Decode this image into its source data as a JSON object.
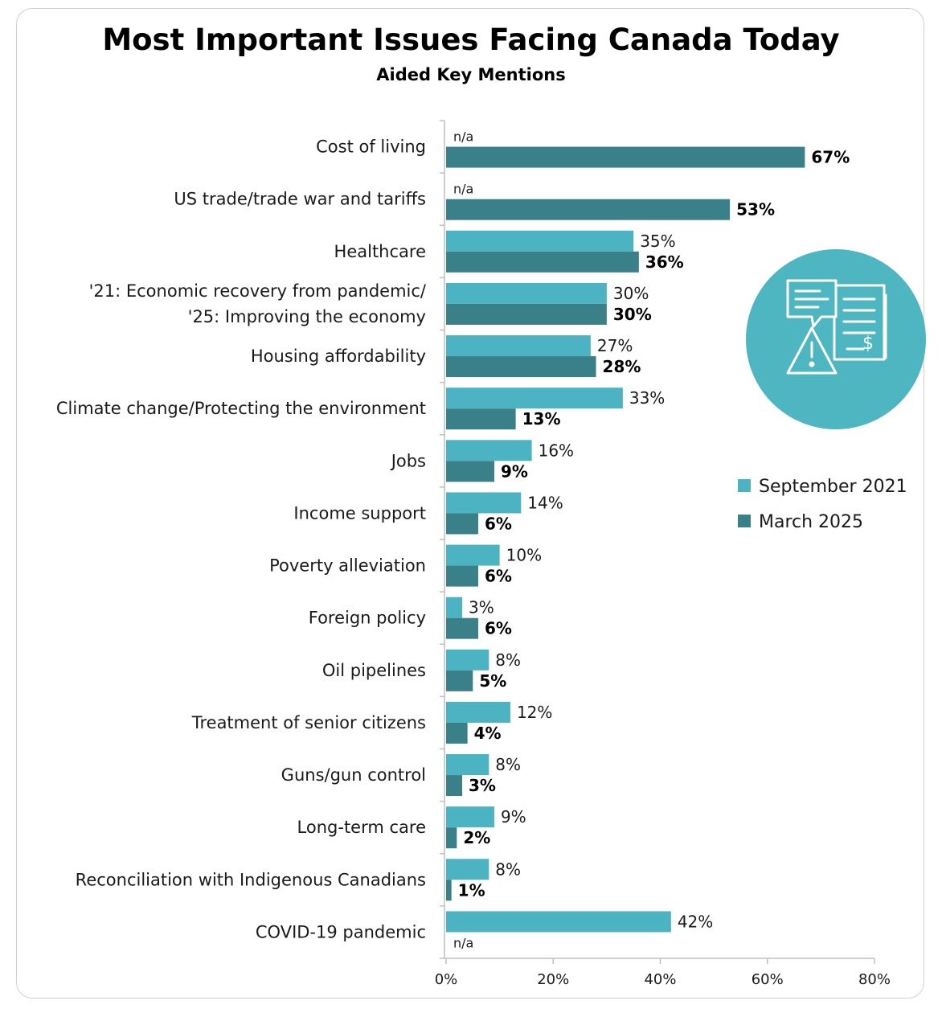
{
  "chart_data": {
    "type": "bar",
    "orientation": "horizontal",
    "title": "Most Important Issues Facing Canada Today",
    "subtitle": "Aided Key Mentions",
    "xlim": [
      0,
      80
    ],
    "x_ticks": [
      "0%",
      "20%",
      "40%",
      "60%",
      "80%"
    ],
    "legend_position": "right",
    "categories": [
      [
        "Cost of living"
      ],
      [
        "US trade/trade war and tariffs"
      ],
      [
        "Healthcare"
      ],
      [
        "'21: Economic recovery from pandemic/",
        "'25: Improving the economy"
      ],
      [
        "Housing affordability"
      ],
      [
        "Climate change/Protecting the environment"
      ],
      [
        "Jobs"
      ],
      [
        "Income support"
      ],
      [
        "Poverty alleviation"
      ],
      [
        "Foreign policy"
      ],
      [
        "Oil pipelines"
      ],
      [
        "Treatment of senior citizens"
      ],
      [
        "Guns/gun control"
      ],
      [
        "Long-term care"
      ],
      [
        "Reconciliation with Indigenous Canadians"
      ],
      [
        "COVID-19 pandemic"
      ]
    ],
    "series": [
      {
        "name": "September 2021",
        "color": "#4bb3c1",
        "values": [
          null,
          null,
          35,
          30,
          27,
          33,
          16,
          14,
          10,
          3,
          8,
          12,
          8,
          9,
          8,
          42
        ],
        "labels": [
          "n/a",
          "n/a",
          "35%",
          "30%",
          "27%",
          "33%",
          "16%",
          "14%",
          "10%",
          "3%",
          "8%",
          "12%",
          "8%",
          "9%",
          "8%",
          "42%"
        ]
      },
      {
        "name": "March 2025",
        "color": "#3a8088",
        "values": [
          67,
          53,
          36,
          30,
          28,
          13,
          9,
          6,
          6,
          6,
          5,
          4,
          3,
          2,
          1,
          null
        ],
        "labels": [
          "67%",
          "53%",
          "36%",
          "30%",
          "28%",
          "13%",
          "9%",
          "6%",
          "6%",
          "6%",
          "5%",
          "4%",
          "3%",
          "2%",
          "1%",
          "n/a"
        ]
      }
    ]
  },
  "icon": {
    "name": "alert-document-dollar-icon",
    "circle_color": "#4db6c0",
    "line_color": "#ffffff"
  }
}
